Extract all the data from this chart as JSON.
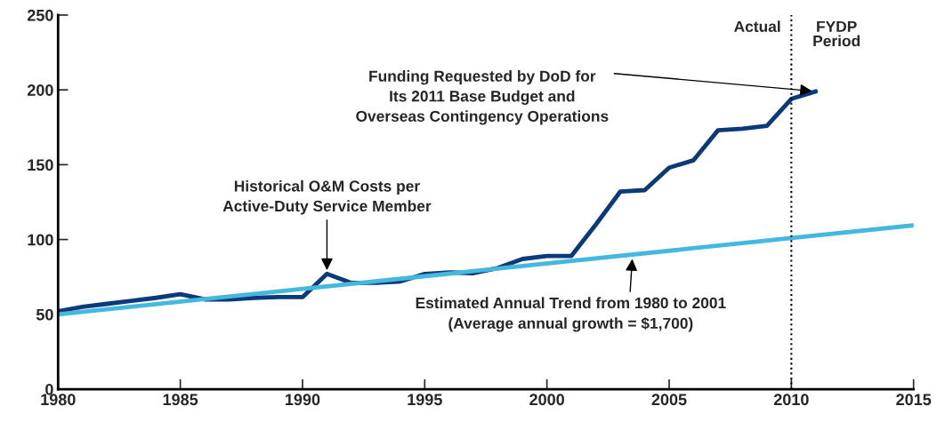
{
  "chart_data": {
    "type": "line",
    "x": [
      1980,
      1981,
      1982,
      1983,
      1984,
      1985,
      1986,
      1987,
      1988,
      1989,
      1990,
      1991,
      1992,
      1993,
      1994,
      1995,
      1996,
      1997,
      1998,
      1999,
      2000,
      2001,
      2002,
      2003,
      2004,
      2005,
      2006,
      2007,
      2008,
      2009,
      2010,
      2011
    ],
    "series": [
      {
        "color": "#0a3a7a",
        "values": [
          52,
          55,
          57,
          59,
          61,
          63.5,
          60,
          60,
          61,
          61.5,
          61.5,
          77,
          71,
          71,
          72,
          77,
          78,
          77.5,
          81,
          87,
          89,
          89,
          110,
          132,
          133,
          148,
          153,
          173,
          174,
          176,
          194,
          199
        ]
      },
      {
        "color": "#45b8e0",
        "x": [
          1980,
          2015
        ],
        "values": [
          50,
          109.5
        ]
      }
    ],
    "xlim": [
      1980,
      2015
    ],
    "xticks": [
      1980,
      1985,
      1990,
      1995,
      2000,
      2005,
      2010,
      2015
    ],
    "ylim": [
      0,
      250
    ],
    "yticks": [
      0,
      50,
      100,
      150,
      200,
      250
    ],
    "grid": false,
    "legend": false,
    "marker": "none",
    "line_style": "solid",
    "ref_lines": [
      {
        "axis": "x",
        "value": 2010,
        "color": "#000000",
        "line_style": "dotted"
      }
    ],
    "annotations": [
      {
        "text": "Funding Requested by DoD for\nIts 2011 Base Budget and\nOverseas Contingency Operations",
        "x": 2011,
        "y": 199
      },
      {
        "text": "Historical O&M Costs per\nActive-Duty Service Member",
        "x": 1991,
        "y": 77
      },
      {
        "text": "Estimated Annual Trend from 1980 to 2001\n(Average annual growth = $1,700)",
        "x": 2003.5,
        "y": 89.5
      },
      "Actual",
      "FYDP\nPeriod"
    ]
  }
}
